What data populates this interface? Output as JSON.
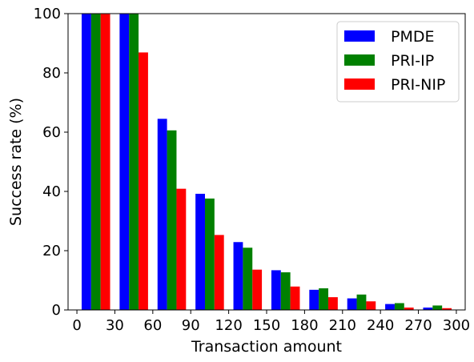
{
  "chart_data": {
    "type": "bar",
    "title": "",
    "xlabel": "Transaction amount",
    "ylabel": "Success rate (%)",
    "xlim": [
      -7,
      307
    ],
    "ylim": [
      0,
      100
    ],
    "xticks": [
      0,
      30,
      60,
      90,
      120,
      150,
      180,
      210,
      240,
      270,
      300
    ],
    "yticks": [
      0,
      20,
      40,
      60,
      80,
      100
    ],
    "x": [
      15,
      45,
      75,
      105,
      135,
      165,
      195,
      225,
      255,
      285
    ],
    "bar_width": 7.5,
    "legend_position": "upper-right",
    "series": [
      {
        "name": "PMDE",
        "color": "#0000ff",
        "values": [
          100,
          100,
          64.5,
          39.2,
          22.9,
          13.4,
          6.8,
          3.9,
          2.0,
          0.8
        ]
      },
      {
        "name": "PRI-IP",
        "color": "#008000",
        "values": [
          100,
          100,
          60.6,
          37.6,
          21.0,
          12.7,
          7.3,
          5.2,
          2.3,
          1.5
        ]
      },
      {
        "name": "PRI-NIP",
        "color": "#ff0000",
        "values": [
          100,
          86.9,
          40.9,
          25.3,
          13.6,
          7.9,
          4.3,
          2.9,
          0.8,
          0.6
        ]
      }
    ]
  }
}
